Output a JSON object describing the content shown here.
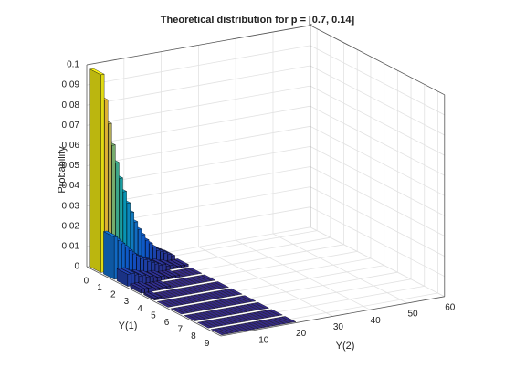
{
  "chart_data": {
    "type": "bar3",
    "title": "Theoretical distribution for p = [0.7, 0.14]",
    "x_label": "Y(1)",
    "y_label": "Y(2)",
    "z_label": "Probability",
    "x": [
      0,
      1,
      2,
      3,
      4,
      5,
      6,
      7,
      8,
      9
    ],
    "y": [
      1,
      2,
      3,
      4,
      5,
      6,
      7,
      8,
      9,
      10,
      11,
      12,
      13,
      14,
      15,
      16,
      17,
      18,
      19,
      20
    ],
    "values": [
      [
        0.098,
        0.085,
        0.073,
        0.062,
        0.053,
        0.045,
        0.038,
        0.032,
        0.027,
        0.022,
        0.018,
        0.015,
        0.012,
        0.01,
        0.008,
        0.006,
        0.005,
        0.004,
        0.003,
        0.002
      ],
      [
        0.021,
        0.019,
        0.017,
        0.015,
        0.013,
        0.011,
        0.009,
        0.008,
        0.007,
        0.006,
        0.005,
        0.004,
        0.003,
        0.003,
        0.002,
        0.002,
        0.001,
        0.001,
        0.001,
        0.001
      ],
      [
        0.006,
        0.006,
        0.005,
        0.004,
        0.004,
        0.003,
        0.003,
        0.002,
        0.002,
        0.002,
        0.001,
        0.001,
        0.001,
        0.001,
        0,
        0,
        0,
        0,
        0,
        0
      ],
      [
        0.002,
        0.002,
        0.002,
        0.001,
        0.001,
        0.001,
        0.001,
        0.001,
        0,
        0,
        0,
        0,
        0,
        0,
        0,
        0,
        0,
        0,
        0,
        0
      ],
      [
        0.001,
        0.001,
        0,
        0,
        0,
        0,
        0,
        0,
        0,
        0,
        0,
        0,
        0,
        0,
        0,
        0,
        0,
        0,
        0,
        0
      ],
      [
        0,
        0,
        0,
        0,
        0,
        0,
        0,
        0,
        0,
        0,
        0,
        0,
        0,
        0,
        0,
        0,
        0,
        0,
        0,
        0
      ],
      [
        0,
        0,
        0,
        0,
        0,
        0,
        0,
        0,
        0,
        0,
        0,
        0,
        0,
        0,
        0,
        0,
        0,
        0,
        0,
        0
      ],
      [
        0,
        0,
        0,
        0,
        0,
        0,
        0,
        0,
        0,
        0,
        0,
        0,
        0,
        0,
        0,
        0,
        0,
        0,
        0,
        0
      ],
      [
        0,
        0,
        0,
        0,
        0,
        0,
        0,
        0,
        0,
        0,
        0,
        0,
        0,
        0,
        0,
        0,
        0,
        0,
        0,
        0
      ],
      [
        0,
        0,
        0,
        0,
        0,
        0,
        0,
        0,
        0,
        0,
        0,
        0,
        0,
        0,
        0,
        0,
        0,
        0,
        0,
        0
      ]
    ],
    "xlim": [
      -0.5,
      9.5
    ],
    "ylim": [
      0,
      60
    ],
    "zlim": [
      0,
      0.1
    ],
    "xticks": [
      0,
      1,
      2,
      3,
      4,
      5,
      6,
      7,
      8,
      9
    ],
    "yticks": [
      10,
      20,
      30,
      40,
      50,
      60
    ],
    "zticks": [
      0,
      0.01,
      0.02,
      0.03,
      0.04,
      0.05,
      0.06,
      0.07,
      0.08,
      0.09,
      0.1
    ],
    "grid": true,
    "colormap": [
      "#352a87",
      "#0f5cdd",
      "#1481d6",
      "#06a4ca",
      "#2eb7a4",
      "#87bf77",
      "#d1bb59",
      "#fec832",
      "#f9fb0e"
    ]
  }
}
